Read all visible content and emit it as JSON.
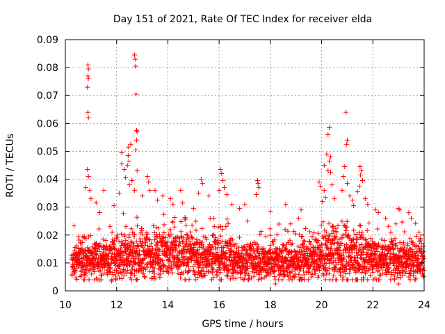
{
  "chart_data": {
    "type": "scatter",
    "title": "Day 151 of 2021, Rate Of TEC Index for receiver elda",
    "xlabel": "GPS time / hours",
    "ylabel": "ROTI / TECUs",
    "xlim": [
      10,
      24
    ],
    "ylim": [
      0,
      0.09
    ],
    "grid": true,
    "marker": "+",
    "color": "#ff0000",
    "xticks": [
      10,
      12,
      14,
      16,
      18,
      20,
      22,
      24
    ],
    "xtick_labels": [
      "10",
      "12",
      "14",
      "16",
      "18",
      "20",
      "22",
      "24"
    ],
    "yticks": [
      0,
      0.01,
      0.02,
      0.03,
      0.04,
      0.05,
      0.06,
      0.07,
      0.08,
      0.09
    ],
    "ytick_labels": [
      "0",
      "0.01",
      "0.02",
      "0.03",
      "0.04",
      "0.05",
      "0.06",
      "0.07",
      "0.08",
      "0.09"
    ],
    "series": [
      {
        "name": "ROTI",
        "x_start": 10.25,
        "x_end": 24.0,
        "typical_range": [
          0.005,
          0.02
        ],
        "outliers": [
          {
            "x": 10.88,
            "y": 0.081
          },
          {
            "x": 10.9,
            "y": 0.0795
          },
          {
            "x": 10.88,
            "y": 0.077
          },
          {
            "x": 10.9,
            "y": 0.076
          },
          {
            "x": 10.86,
            "y": 0.073
          },
          {
            "x": 10.88,
            "y": 0.064
          },
          {
            "x": 10.9,
            "y": 0.062
          },
          {
            "x": 10.86,
            "y": 0.0435
          },
          {
            "x": 10.9,
            "y": 0.041
          },
          {
            "x": 10.8,
            "y": 0.037
          },
          {
            "x": 10.95,
            "y": 0.036
          },
          {
            "x": 11.0,
            "y": 0.033
          },
          {
            "x": 12.7,
            "y": 0.0845
          },
          {
            "x": 12.72,
            "y": 0.083
          },
          {
            "x": 12.74,
            "y": 0.0805
          },
          {
            "x": 12.76,
            "y": 0.0705
          },
          {
            "x": 12.78,
            "y": 0.0575
          },
          {
            "x": 12.8,
            "y": 0.057
          },
          {
            "x": 12.78,
            "y": 0.054
          },
          {
            "x": 12.55,
            "y": 0.0525
          },
          {
            "x": 12.45,
            "y": 0.0515
          },
          {
            "x": 12.75,
            "y": 0.0505
          },
          {
            "x": 12.2,
            "y": 0.0495
          },
          {
            "x": 12.45,
            "y": 0.0485
          },
          {
            "x": 12.48,
            "y": 0.0465
          },
          {
            "x": 12.2,
            "y": 0.0455
          },
          {
            "x": 12.42,
            "y": 0.045
          },
          {
            "x": 12.3,
            "y": 0.0435
          },
          {
            "x": 12.8,
            "y": 0.043
          },
          {
            "x": 12.35,
            "y": 0.0405
          },
          {
            "x": 12.6,
            "y": 0.0395
          },
          {
            "x": 12.5,
            "y": 0.038
          },
          {
            "x": 12.7,
            "y": 0.036
          },
          {
            "x": 13.2,
            "y": 0.041
          },
          {
            "x": 13.25,
            "y": 0.039
          },
          {
            "x": 13.3,
            "y": 0.036
          },
          {
            "x": 13.5,
            "y": 0.036
          },
          {
            "x": 13.0,
            "y": 0.034
          },
          {
            "x": 12.1,
            "y": 0.035
          },
          {
            "x": 11.5,
            "y": 0.036
          },
          {
            "x": 11.2,
            "y": 0.0315
          },
          {
            "x": 13.8,
            "y": 0.034
          },
          {
            "x": 14.1,
            "y": 0.033
          },
          {
            "x": 14.2,
            "y": 0.031
          },
          {
            "x": 14.5,
            "y": 0.036
          },
          {
            "x": 15.3,
            "y": 0.04
          },
          {
            "x": 15.35,
            "y": 0.0385
          },
          {
            "x": 15.2,
            "y": 0.035
          },
          {
            "x": 15.6,
            "y": 0.034
          },
          {
            "x": 16.05,
            "y": 0.0435
          },
          {
            "x": 16.1,
            "y": 0.042
          },
          {
            "x": 16.15,
            "y": 0.0395
          },
          {
            "x": 16.2,
            "y": 0.037
          },
          {
            "x": 16.0,
            "y": 0.036
          },
          {
            "x": 16.3,
            "y": 0.0345
          },
          {
            "x": 16.5,
            "y": 0.031
          },
          {
            "x": 16.8,
            "y": 0.0295
          },
          {
            "x": 17.0,
            "y": 0.031
          },
          {
            "x": 17.5,
            "y": 0.0395
          },
          {
            "x": 17.52,
            "y": 0.0385
          },
          {
            "x": 17.55,
            "y": 0.037
          },
          {
            "x": 17.45,
            "y": 0.0345
          },
          {
            "x": 17.1,
            "y": 0.025
          },
          {
            "x": 18.6,
            "y": 0.031
          },
          {
            "x": 19.2,
            "y": 0.029
          },
          {
            "x": 19.1,
            "y": 0.026
          },
          {
            "x": 19.9,
            "y": 0.039
          },
          {
            "x": 19.95,
            "y": 0.0375
          },
          {
            "x": 20.1,
            "y": 0.036
          },
          {
            "x": 20.15,
            "y": 0.0335
          },
          {
            "x": 20.3,
            "y": 0.0585
          },
          {
            "x": 20.25,
            "y": 0.056
          },
          {
            "x": 20.2,
            "y": 0.049
          },
          {
            "x": 20.35,
            "y": 0.048
          },
          {
            "x": 20.3,
            "y": 0.0465
          },
          {
            "x": 20.1,
            "y": 0.045
          },
          {
            "x": 20.25,
            "y": 0.043
          },
          {
            "x": 20.35,
            "y": 0.0425
          },
          {
            "x": 20.4,
            "y": 0.038
          },
          {
            "x": 20.5,
            "y": 0.033
          },
          {
            "x": 20.95,
            "y": 0.064
          },
          {
            "x": 21.0,
            "y": 0.054
          },
          {
            "x": 20.98,
            "y": 0.0525
          },
          {
            "x": 20.9,
            "y": 0.0445
          },
          {
            "x": 20.85,
            "y": 0.041
          },
          {
            "x": 20.8,
            "y": 0.036
          },
          {
            "x": 21.0,
            "y": 0.0385
          },
          {
            "x": 21.1,
            "y": 0.034
          },
          {
            "x": 21.2,
            "y": 0.0325
          },
          {
            "x": 21.25,
            "y": 0.0305
          },
          {
            "x": 21.5,
            "y": 0.0445
          },
          {
            "x": 21.55,
            "y": 0.043
          },
          {
            "x": 21.52,
            "y": 0.0415
          },
          {
            "x": 21.6,
            "y": 0.0395
          },
          {
            "x": 21.48,
            "y": 0.0375
          },
          {
            "x": 21.4,
            "y": 0.0355
          },
          {
            "x": 21.7,
            "y": 0.033
          },
          {
            "x": 21.8,
            "y": 0.031
          },
          {
            "x": 22.1,
            "y": 0.029
          },
          {
            "x": 22.5,
            "y": 0.026
          },
          {
            "x": 23.0,
            "y": 0.0295
          },
          {
            "x": 23.05,
            "y": 0.029
          },
          {
            "x": 23.4,
            "y": 0.028
          },
          {
            "x": 23.5,
            "y": 0.026
          },
          {
            "x": 11.9,
            "y": 0.0305
          },
          {
            "x": 13.6,
            "y": 0.0325
          },
          {
            "x": 15.0,
            "y": 0.0295
          },
          {
            "x": 18.0,
            "y": 0.0285
          },
          {
            "x": 22.9,
            "y": 0.024
          },
          {
            "x": 23.8,
            "y": 0.021
          },
          {
            "x": 18.2,
            "y": 0.0025
          },
          {
            "x": 23.0,
            "y": 0.0025
          },
          {
            "x": 11.8,
            "y": 0.0035
          }
        ]
      }
    ]
  }
}
